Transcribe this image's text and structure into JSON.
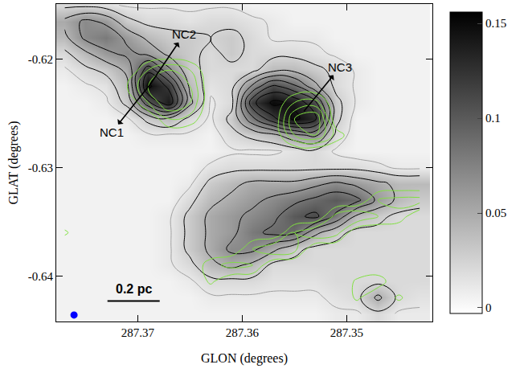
{
  "chart_data": {
    "type": "heatmap",
    "xlabel": "GLON (degrees)",
    "ylabel": "GLAT (degrees)",
    "xlim": [
      287.3778,
      287.3418
    ],
    "ylim": [
      -0.6442,
      -0.6149
    ],
    "xticks": [
      287.37,
      287.36,
      287.35
    ],
    "yticks": [
      -0.62,
      -0.63,
      -0.64
    ],
    "x": [
      287.377,
      287.375,
      287.373,
      287.371,
      287.369,
      287.367,
      287.365,
      287.363,
      287.361,
      287.359,
      287.357,
      287.355,
      287.353,
      287.351,
      287.349,
      287.347,
      287.345,
      287.343
    ],
    "y": [
      -0.615,
      -0.6165,
      -0.618,
      -0.6195,
      -0.621,
      -0.6225,
      -0.624,
      -0.6255,
      -0.627,
      -0.6285,
      -0.63,
      -0.6315,
      -0.633,
      -0.6345,
      -0.636,
      -0.6375,
      -0.639,
      -0.6405,
      -0.642,
      -0.6435
    ],
    "cells": [
      [
        0.02,
        0.02,
        0.015,
        0.01,
        0.01,
        0.01,
        0.01,
        0.01,
        0.01,
        0.005,
        0.005,
        0.005,
        0.005,
        0.005,
        0.005,
        0.005,
        0.005,
        0.005
      ],
      [
        0.05,
        0.07,
        0.06,
        0.03,
        0.02,
        0.02,
        0.015,
        0.02,
        0.02,
        0.015,
        0.01,
        0.005,
        0.005,
        0.005,
        0.005,
        0.005,
        0.005,
        0.005
      ],
      [
        0.04,
        0.07,
        0.08,
        0.06,
        0.04,
        0.03,
        0.03,
        0.025,
        0.03,
        0.02,
        0.01,
        0.01,
        0.01,
        0.005,
        0.005,
        0.005,
        0.005,
        0.005
      ],
      [
        0.02,
        0.04,
        0.06,
        0.07,
        0.06,
        0.04,
        0.03,
        0.02,
        0.03,
        0.02,
        0.02,
        0.02,
        0.015,
        0.01,
        0.005,
        0.005,
        0.005,
        0.005
      ],
      [
        0.01,
        0.02,
        0.03,
        0.05,
        0.12,
        0.07,
        0.03,
        0.02,
        0.02,
        0.02,
        0.04,
        0.04,
        0.03,
        0.02,
        0.01,
        0.005,
        0.005,
        0.005
      ],
      [
        0.005,
        0.01,
        0.015,
        0.04,
        0.15,
        0.12,
        0.04,
        0.015,
        0.02,
        0.07,
        0.11,
        0.09,
        0.05,
        0.02,
        0.01,
        0.005,
        0.005,
        0.005
      ],
      [
        0.005,
        0.005,
        0.01,
        0.03,
        0.1,
        0.14,
        0.05,
        0.01,
        0.02,
        0.12,
        0.15,
        0.14,
        0.11,
        0.03,
        0.01,
        0.005,
        0.005,
        0.005
      ],
      [
        0.005,
        0.005,
        0.005,
        0.01,
        0.03,
        0.04,
        0.02,
        0.01,
        0.03,
        0.08,
        0.12,
        0.15,
        0.13,
        0.03,
        0.005,
        0.005,
        0.005,
        0.005
      ],
      [
        0.005,
        0.005,
        0.005,
        0.005,
        0.01,
        0.01,
        0.01,
        0.005,
        0.02,
        0.03,
        0.04,
        0.06,
        0.07,
        0.02,
        0.005,
        0.005,
        0.005,
        0.005
      ],
      [
        0.005,
        0.005,
        0.005,
        0.005,
        0.005,
        0.005,
        0.005,
        0.005,
        0.01,
        0.01,
        0.01,
        0.015,
        0.02,
        0.01,
        0.005,
        0.005,
        0.005,
        0.005
      ],
      [
        0.005,
        0.005,
        0.005,
        0.005,
        0.005,
        0.005,
        0.005,
        0.015,
        0.02,
        0.02,
        0.02,
        0.02,
        0.02,
        0.02,
        0.02,
        0.015,
        0.01,
        0.01
      ],
      [
        0.005,
        0.005,
        0.005,
        0.005,
        0.005,
        0.005,
        0.01,
        0.03,
        0.04,
        0.05,
        0.05,
        0.05,
        0.06,
        0.07,
        0.06,
        0.05,
        0.04,
        0.04
      ],
      [
        0.005,
        0.005,
        0.005,
        0.005,
        0.005,
        0.005,
        0.02,
        0.04,
        0.05,
        0.06,
        0.07,
        0.08,
        0.09,
        0.1,
        0.09,
        0.06,
        0.04,
        0.03
      ],
      [
        0.005,
        0.005,
        0.005,
        0.005,
        0.005,
        0.01,
        0.03,
        0.05,
        0.06,
        0.07,
        0.08,
        0.1,
        0.11,
        0.08,
        0.04,
        0.03,
        0.02,
        0.02
      ],
      [
        0.005,
        0.005,
        0.005,
        0.005,
        0.005,
        0.01,
        0.03,
        0.05,
        0.06,
        0.08,
        0.09,
        0.09,
        0.05,
        0.03,
        0.02,
        0.02,
        0.02,
        0.02
      ],
      [
        0.005,
        0.005,
        0.005,
        0.005,
        0.005,
        0.01,
        0.03,
        0.05,
        0.07,
        0.07,
        0.05,
        0.03,
        0.02,
        0.02,
        0.02,
        0.02,
        0.02,
        0.02
      ],
      [
        0.005,
        0.005,
        0.005,
        0.005,
        0.005,
        0.01,
        0.02,
        0.04,
        0.05,
        0.04,
        0.02,
        0.02,
        0.02,
        0.02,
        0.02,
        0.02,
        0.02,
        0.02
      ],
      [
        0.005,
        0.005,
        0.005,
        0.005,
        0.005,
        0.005,
        0.01,
        0.02,
        0.02,
        0.02,
        0.015,
        0.015,
        0.015,
        0.02,
        0.02,
        0.02,
        0.02,
        0.02
      ],
      [
        0.005,
        0.005,
        0.005,
        0.005,
        0.005,
        0.005,
        0.005,
        0.01,
        0.01,
        0.01,
        0.01,
        0.01,
        0.01,
        0.015,
        0.02,
        0.05,
        0.02,
        0.015
      ],
      [
        0.005,
        0.005,
        0.005,
        0.005,
        0.005,
        0.005,
        0.005,
        0.005,
        0.005,
        0.005,
        0.005,
        0.005,
        0.005,
        0.01,
        0.01,
        0.02,
        0.01,
        0.01
      ]
    ],
    "colorbar": {
      "range": [
        -0.003,
        0.156
      ],
      "ticks": [
        0,
        0.05,
        0.1,
        0.15
      ]
    },
    "contours": [
      {
        "color": "#000000",
        "start": 0.025,
        "end": 0.145,
        "size": 0.02
      },
      {
        "color": "#a0a0a0",
        "start": 0.012,
        "end": 0.012,
        "size": 0.01
      }
    ],
    "green_contours": {
      "color": "#80e040",
      "start": 0.5,
      "end": 2.5,
      "size": 0.5,
      "cells": [
        [
          0,
          0,
          0,
          0,
          0,
          0,
          0,
          0,
          0,
          0,
          0,
          0,
          0,
          0,
          0,
          0,
          0,
          0
        ],
        [
          0,
          0,
          0,
          0,
          0,
          0,
          0,
          0,
          0,
          0,
          0,
          0,
          0,
          0,
          0,
          0,
          0,
          0
        ],
        [
          0,
          0,
          0,
          0,
          0,
          0,
          0,
          0,
          0,
          0,
          0,
          0,
          0,
          0,
          0,
          0,
          0,
          0
        ],
        [
          0,
          0,
          0,
          0,
          0,
          0,
          0,
          0,
          0,
          0,
          0,
          0,
          0,
          0,
          0,
          0,
          0,
          0
        ],
        [
          0,
          0,
          0,
          0,
          1,
          1.5,
          1,
          0,
          0,
          0,
          0,
          0,
          0,
          0,
          0,
          0,
          0,
          0
        ],
        [
          0,
          0,
          0,
          0.5,
          1.5,
          2,
          1.5,
          0,
          0,
          0,
          0,
          0,
          0,
          0,
          0,
          0,
          0,
          0
        ],
        [
          0,
          0,
          0,
          0,
          1,
          2,
          1.5,
          0,
          0,
          0,
          0,
          1,
          1.2,
          0,
          0,
          0,
          0,
          0
        ],
        [
          0,
          0,
          0,
          0,
          0,
          1,
          0.8,
          0,
          0,
          0,
          0,
          2,
          2.5,
          0,
          0,
          0,
          0,
          0
        ],
        [
          0,
          0,
          0,
          0,
          0,
          0,
          0,
          0,
          0,
          0,
          0,
          1.5,
          2,
          0.8,
          0,
          0,
          0,
          0
        ],
        [
          0,
          0,
          0,
          0,
          0,
          0,
          0,
          0,
          0,
          0,
          0,
          0,
          0,
          0,
          0,
          0,
          0,
          0
        ],
        [
          0,
          0,
          0,
          0,
          0,
          0,
          0,
          0,
          0,
          0,
          0,
          0,
          0,
          0,
          0,
          0,
          0,
          0
        ],
        [
          0,
          0,
          0,
          0,
          0,
          0,
          0,
          0,
          0,
          0,
          0,
          0,
          0,
          0,
          0,
          0,
          0,
          0
        ],
        [
          0,
          0,
          0,
          0,
          0,
          0,
          0,
          0,
          0,
          0,
          0,
          0,
          0,
          0,
          0,
          1,
          1.2,
          1.2
        ],
        [
          0,
          0,
          0,
          0,
          0,
          0,
          0,
          0,
          0,
          0,
          0,
          0,
          0,
          1.2,
          1.5,
          1,
          0.8,
          0
        ],
        [
          0.6,
          0,
          0,
          0,
          0,
          0,
          0,
          0,
          0,
          0,
          0,
          1,
          1.5,
          1.2,
          0,
          0,
          0,
          0
        ],
        [
          0,
          0,
          0,
          0,
          0,
          0,
          0,
          0,
          0,
          1,
          1.5,
          1.2,
          0,
          0,
          0,
          0,
          0,
          0
        ],
        [
          0,
          0,
          0,
          0,
          0,
          0,
          0,
          0.8,
          1.2,
          1,
          0,
          0,
          0,
          0,
          0,
          0,
          0,
          0
        ],
        [
          0,
          0,
          0,
          0,
          0,
          0,
          0,
          0.6,
          0,
          0,
          0,
          0,
          0,
          0,
          0.6,
          0.8,
          0,
          0
        ],
        [
          0,
          0,
          0,
          0,
          0,
          0,
          0,
          0,
          0,
          0,
          0,
          0,
          0,
          0,
          0.6,
          0,
          0.6,
          0
        ],
        [
          0,
          0,
          0,
          0,
          0,
          0,
          0,
          0,
          0,
          0,
          0,
          0,
          0,
          0,
          0,
          0,
          0,
          0
        ]
      ]
    },
    "annotations": [
      {
        "text": "NC2",
        "x": 287.3688,
        "y": -0.6223
      },
      {
        "text": "NC1",
        "x": 287.3688,
        "y": -0.6223
      },
      {
        "text": "NC3",
        "x": 287.3541,
        "y": -0.6248
      }
    ],
    "scale_bar": {
      "text": "0.2 pc",
      "x": [
        287.3729,
        287.3679
      ],
      "y": -0.6423
    },
    "beam": {
      "x": 287.3761,
      "y": -0.6436,
      "color": "#0000ff"
    }
  }
}
